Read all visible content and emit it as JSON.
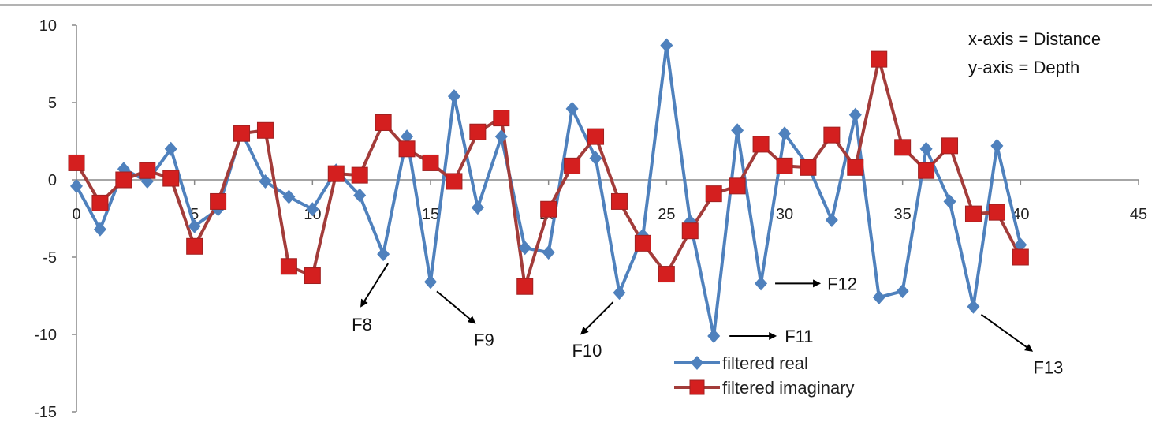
{
  "chart_data": {
    "type": "line",
    "x": [
      0,
      1,
      2,
      3,
      4,
      5,
      6,
      7,
      8,
      9,
      10,
      11,
      12,
      13,
      14,
      15,
      16,
      17,
      18,
      19,
      20,
      21,
      22,
      23,
      24,
      25,
      26,
      27,
      28,
      29,
      30,
      31,
      32,
      33,
      34,
      35,
      36,
      37,
      38,
      39,
      40
    ],
    "series": [
      {
        "name": "filtered real",
        "color": "#4F81BD",
        "marker": "diamond",
        "values": [
          -0.4,
          -3.2,
          0.7,
          -0.1,
          2.0,
          -3.0,
          -1.9,
          3.1,
          -0.1,
          -1.1,
          -1.9,
          0.6,
          -1.0,
          -4.8,
          2.8,
          -6.6,
          5.4,
          -1.8,
          2.8,
          -4.4,
          -4.7,
          4.6,
          1.4,
          -7.3,
          -3.6,
          8.7,
          -2.7,
          -10.1,
          3.2,
          -6.7,
          3.0,
          0.9,
          -2.6,
          4.2,
          -7.6,
          -7.2,
          2.0,
          -1.4,
          -8.2,
          2.2,
          -4.2
        ]
      },
      {
        "name": "filtered imaginary",
        "color": "#C0504D",
        "line_color": "#A33C3A",
        "marker": "square",
        "values": [
          1.1,
          -1.5,
          0.0,
          0.6,
          0.1,
          -4.3,
          -1.4,
          3.0,
          3.2,
          -5.6,
          -6.2,
          0.4,
          0.3,
          3.7,
          2.0,
          1.1,
          -0.1,
          3.1,
          4.0,
          -6.9,
          -1.9,
          0.9,
          2.8,
          -1.4,
          -4.1,
          -6.1,
          -3.3,
          -0.9,
          -0.4,
          2.3,
          0.9,
          0.8,
          2.9,
          0.8,
          7.8,
          2.1,
          0.6,
          2.2,
          -2.2,
          -2.1,
          -5.0
        ]
      }
    ],
    "xlim": [
      0,
      45
    ],
    "x_ticks": [
      "0",
      "5",
      "10",
      "15",
      "20",
      "25",
      "30",
      "35",
      "40",
      "45"
    ],
    "ylim": [
      -15,
      10
    ],
    "y_ticks": [
      "10",
      "5",
      "0",
      "-5",
      "-10",
      "-15"
    ],
    "legend": [
      "filtered real",
      "filtered imaginary"
    ],
    "legend_position": "bottom-center",
    "annotations": [
      "x-axis = Distance",
      "y-axis = Depth"
    ],
    "feature_labels": [
      {
        "text": "F8",
        "x": 13,
        "series": "filtered real"
      },
      {
        "text": "F9",
        "x": 15,
        "series": "filtered real"
      },
      {
        "text": "F10",
        "x": 23,
        "series": "filtered real"
      },
      {
        "text": "F11",
        "x": 27,
        "series": "filtered real"
      },
      {
        "text": "F12",
        "x": 29,
        "series": "filtered real"
      },
      {
        "text": "F13",
        "x": 38,
        "series": "filtered real"
      }
    ],
    "title": "",
    "xlabel": "",
    "ylabel": "",
    "grid": false
  }
}
